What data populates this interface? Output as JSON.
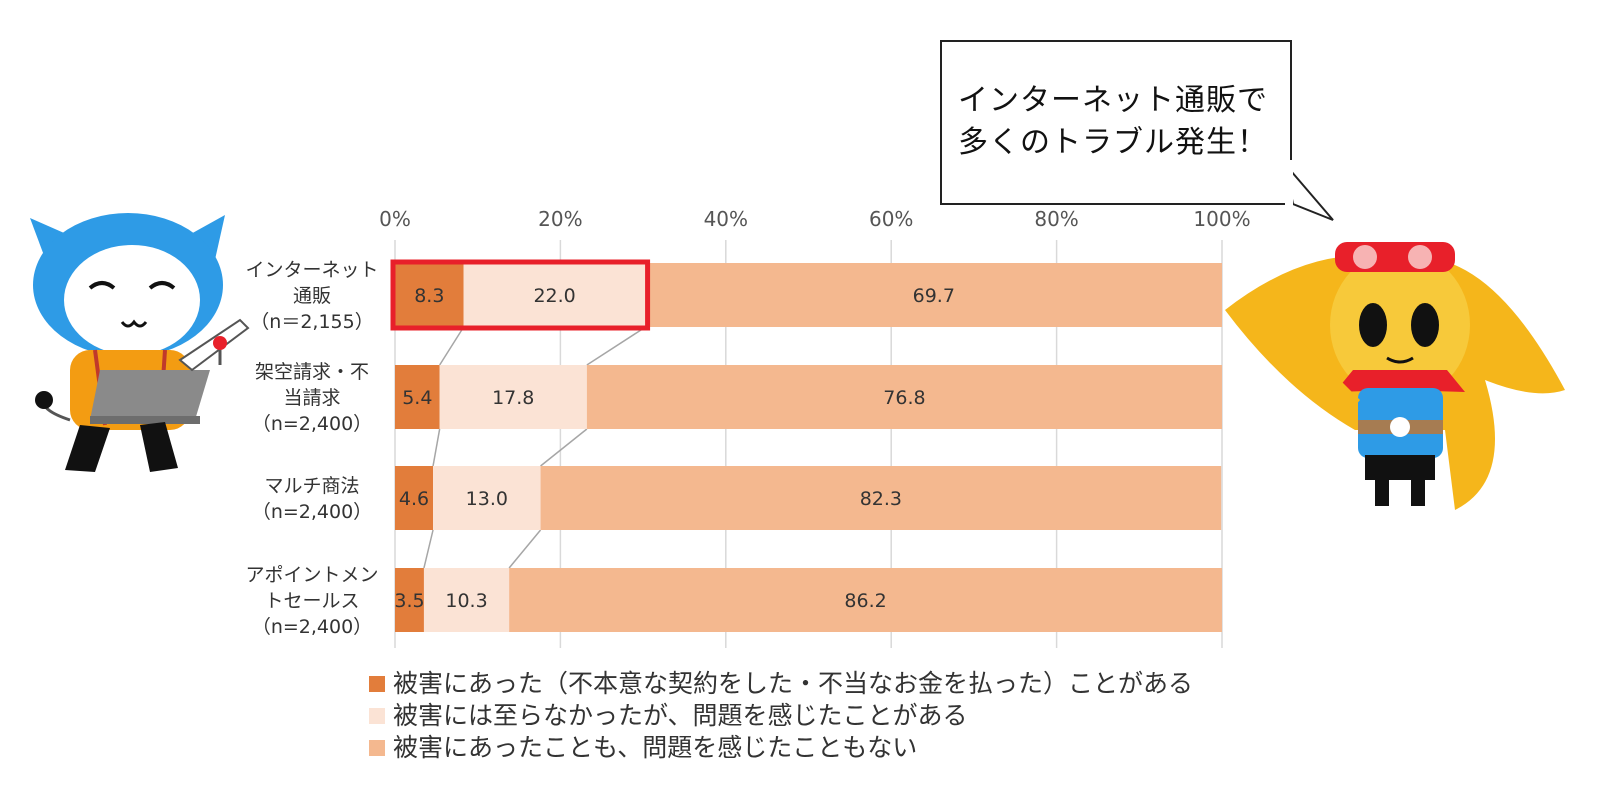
{
  "speech_bubble": {
    "lines": [
      "インターネット通販で",
      "多くのトラブル発生！"
    ]
  },
  "colors": {
    "series_damage": "#e27d3b",
    "series_concern": "#fbe3d5",
    "series_none": "#f4b88f",
    "highlight_box": "#e8202a",
    "grid": "#d9d9d9",
    "blue_mascot": "#2e9be6",
    "yellow_mascot": "#f5b61b"
  },
  "chart_data": {
    "type": "bar",
    "orientation": "horizontal",
    "stacked": true,
    "xlim": [
      0,
      100
    ],
    "x_ticks": [
      "0%",
      "20%",
      "40%",
      "60%",
      "80%",
      "100%"
    ],
    "grid": true,
    "legend_position": "bottom",
    "categories": [
      [
        "インターネット",
        "通販",
        "（n＝2,155）"
      ],
      [
        "架空請求・不",
        "当請求",
        "（n=2,400）"
      ],
      [
        "マルチ商法",
        "（n=2,400）"
      ],
      [
        "アポイントメン",
        "トセールス",
        "（n=2,400）"
      ]
    ],
    "series": [
      {
        "name": "被害にあった（不本意な契約をした・不当なお金を払った）ことがある",
        "values": [
          8.3,
          5.4,
          4.6,
          3.5
        ],
        "labels": [
          "8.3",
          "5.4",
          "4.6",
          "3.5"
        ]
      },
      {
        "name": "被害には至らなかったが、問題を感じたことがある",
        "values": [
          22.0,
          17.8,
          13.0,
          10.3
        ],
        "labels": [
          "22.0",
          "17.8",
          "13.0",
          "10.3"
        ]
      },
      {
        "name": "被害にあったことも、問題を感じたこともない",
        "values": [
          69.7,
          76.8,
          82.3,
          86.2
        ],
        "labels": [
          "69.7",
          "76.8",
          "82.3",
          "86.2"
        ]
      }
    ],
    "highlighted_category_index": 0,
    "highlighted_series_count": 2
  }
}
